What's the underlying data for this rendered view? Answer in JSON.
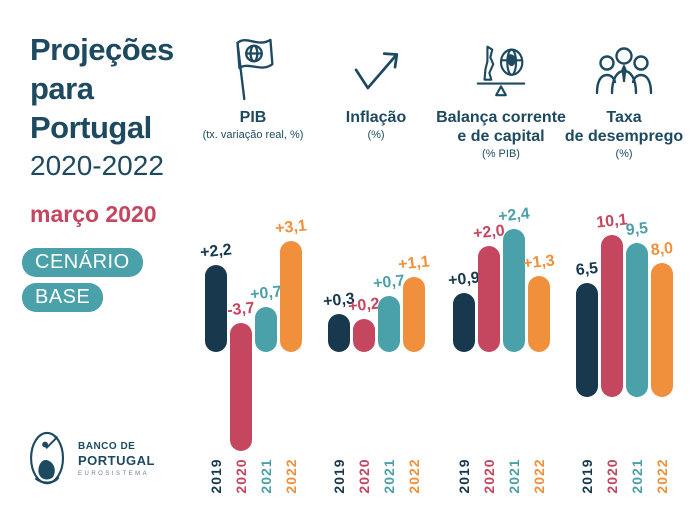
{
  "sidebar": {
    "title_lines": [
      "Projeções",
      "para",
      "Portugal"
    ],
    "period": "2020-2022",
    "date": "março 2020",
    "badge1": "CENÁRIO",
    "badge2": "BASE"
  },
  "logo": {
    "name_line1": "BANCO DE",
    "name_line2": "PORTUGAL",
    "subtext": "EUROSISTEMA"
  },
  "colors": {
    "heading": "#1d4a61",
    "badge_background": "#4ba1a9",
    "date_text": "#c5465f",
    "background": "#ffffff"
  },
  "year_colors": {
    "2019": "#17384d",
    "2020": "#c5465f",
    "2021": "#4ba1a9",
    "2022": "#f0903c"
  },
  "chart_data": [
    {
      "type": "bar",
      "icon": "portugal-flag-icon",
      "title": "PIB",
      "title_lines": [
        "PIB"
      ],
      "subtitle": "(tx. variação real, %)",
      "categories": [
        "2019",
        "2020",
        "2021",
        "2022"
      ],
      "values": [
        2.2,
        -3.7,
        0.7,
        3.1
      ],
      "value_labels": [
        "+2,2",
        "-3,7",
        "+0,7",
        "+3,1"
      ]
    },
    {
      "type": "bar",
      "icon": "rising-arrow-icon",
      "title": "Inflação",
      "title_lines": [
        "Inflação"
      ],
      "subtitle": "(%)",
      "categories": [
        "2019",
        "2020",
        "2021",
        "2022"
      ],
      "values": [
        0.3,
        0.2,
        0.7,
        1.1
      ],
      "value_labels": [
        "+0,3",
        "+0,2",
        "+0,7",
        "+1,1"
      ]
    },
    {
      "type": "bar",
      "icon": "portugal-globe-balance-icon",
      "title": "Balança corrente e de capital",
      "title_lines": [
        "Balança corrente",
        "e de capital"
      ],
      "subtitle": "(% PIB)",
      "categories": [
        "2019",
        "2020",
        "2021",
        "2022"
      ],
      "values": [
        0.9,
        2.0,
        2.4,
        1.3
      ],
      "value_labels": [
        "+0,9",
        "+2,0",
        "+2,4",
        "+1,3"
      ]
    },
    {
      "type": "bar",
      "icon": "people-group-icon",
      "title": "Taxa de desemprego",
      "title_lines": [
        "Taxa",
        "de desemprego"
      ],
      "subtitle": "(%)",
      "categories": [
        "2019",
        "2020",
        "2021",
        "2022"
      ],
      "values": [
        6.5,
        10.1,
        9.5,
        8.0
      ],
      "value_labels": [
        "6,5",
        "10,1",
        "9,5",
        "8,0"
      ]
    }
  ]
}
